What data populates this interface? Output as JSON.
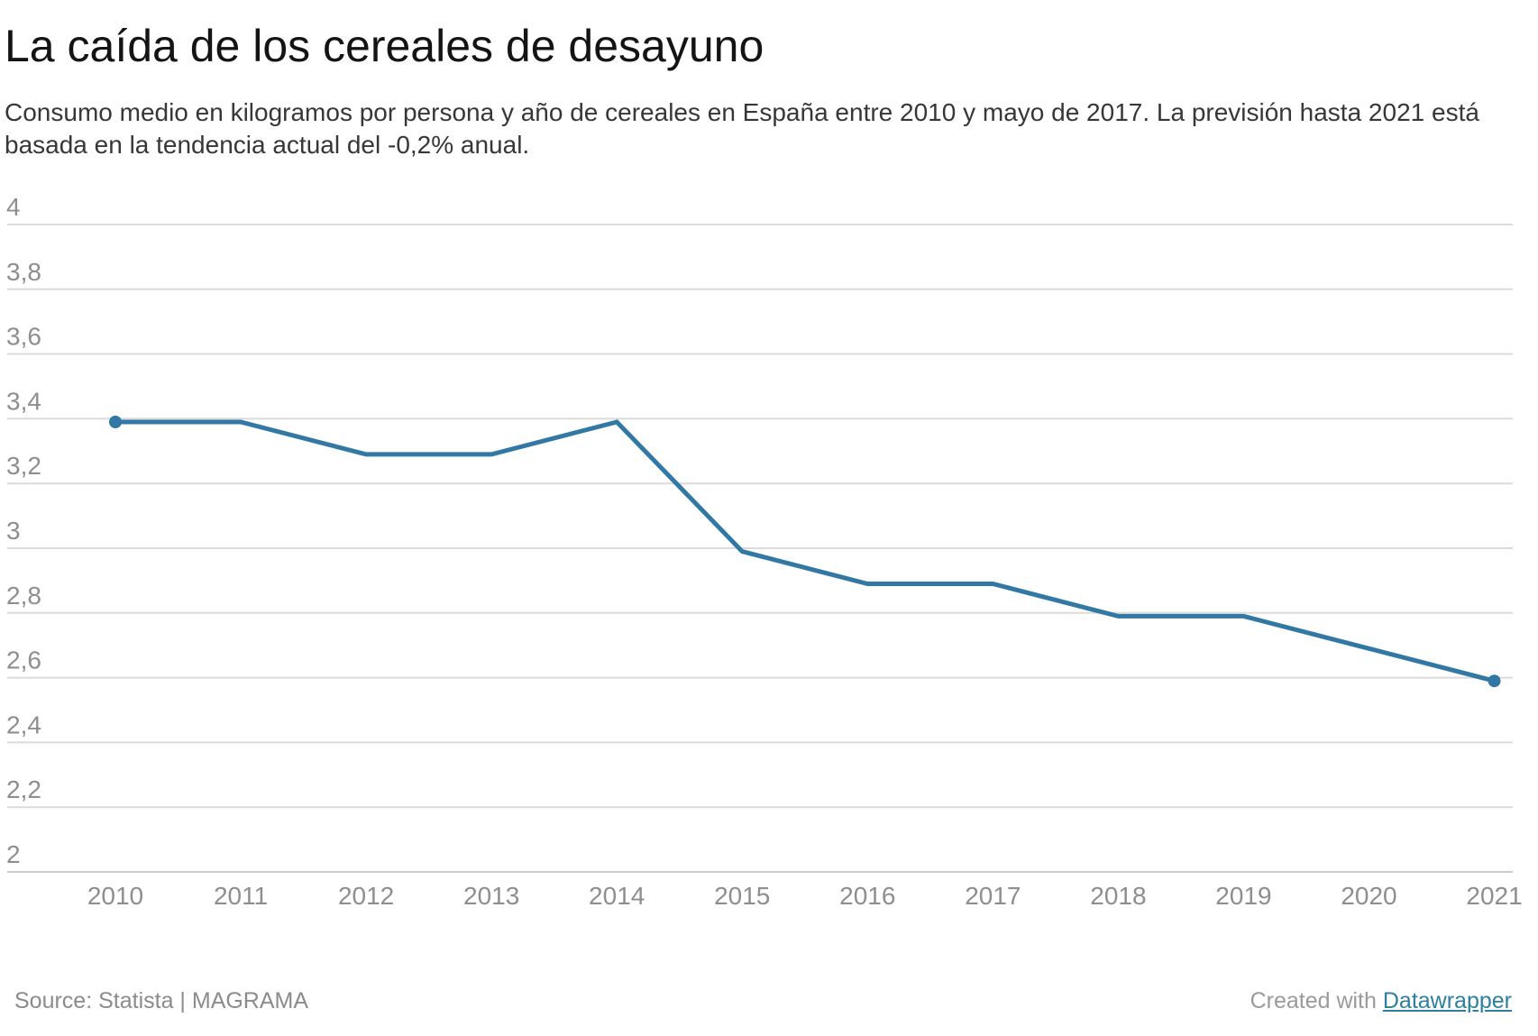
{
  "header": {
    "title": "La caída de los cereales de desayuno",
    "description": "Consumo medio en kilogramos por persona y año de cereales en España entre 2010 y mayo de 2017. La previsión hasta 2021 está basada en la tendencia actual del -0,2% anual."
  },
  "chart_data": {
    "type": "line",
    "title": "La caída de los cereales de desayuno",
    "x": [
      2010,
      2011,
      2012,
      2013,
      2014,
      2015,
      2016,
      2017,
      2018,
      2019,
      2020,
      2021
    ],
    "values": [
      3.39,
      3.39,
      3.29,
      3.29,
      3.39,
      2.99,
      2.89,
      2.89,
      2.79,
      2.79,
      2.69,
      2.59
    ],
    "unit": "kg por persona y año",
    "ylim": [
      2,
      4
    ],
    "ytick_step": 0.2,
    "ytick_labels": [
      "4",
      "3,8",
      "3,6",
      "3,4",
      "3,2",
      "3",
      "2,8",
      "2,6",
      "2,4",
      "2,2",
      "2"
    ],
    "xtick_labels": [
      "2010",
      "2011",
      "2012",
      "2013",
      "2014",
      "2015",
      "2016",
      "2017",
      "2018",
      "2019",
      "2020",
      "2021"
    ],
    "grid": "horizontal",
    "legend": "none",
    "line_color": "#3278a5",
    "grid_color": "#dbdbdb",
    "baseline_color": "#cccccc",
    "axis_label_color": "#8e8e8e",
    "end_point_years": [
      2010,
      2021
    ]
  },
  "footer": {
    "source": "Source: Statista | MAGRAMA",
    "attribution_prefix": "Created with ",
    "attribution_link_text": "Datawrapper"
  }
}
